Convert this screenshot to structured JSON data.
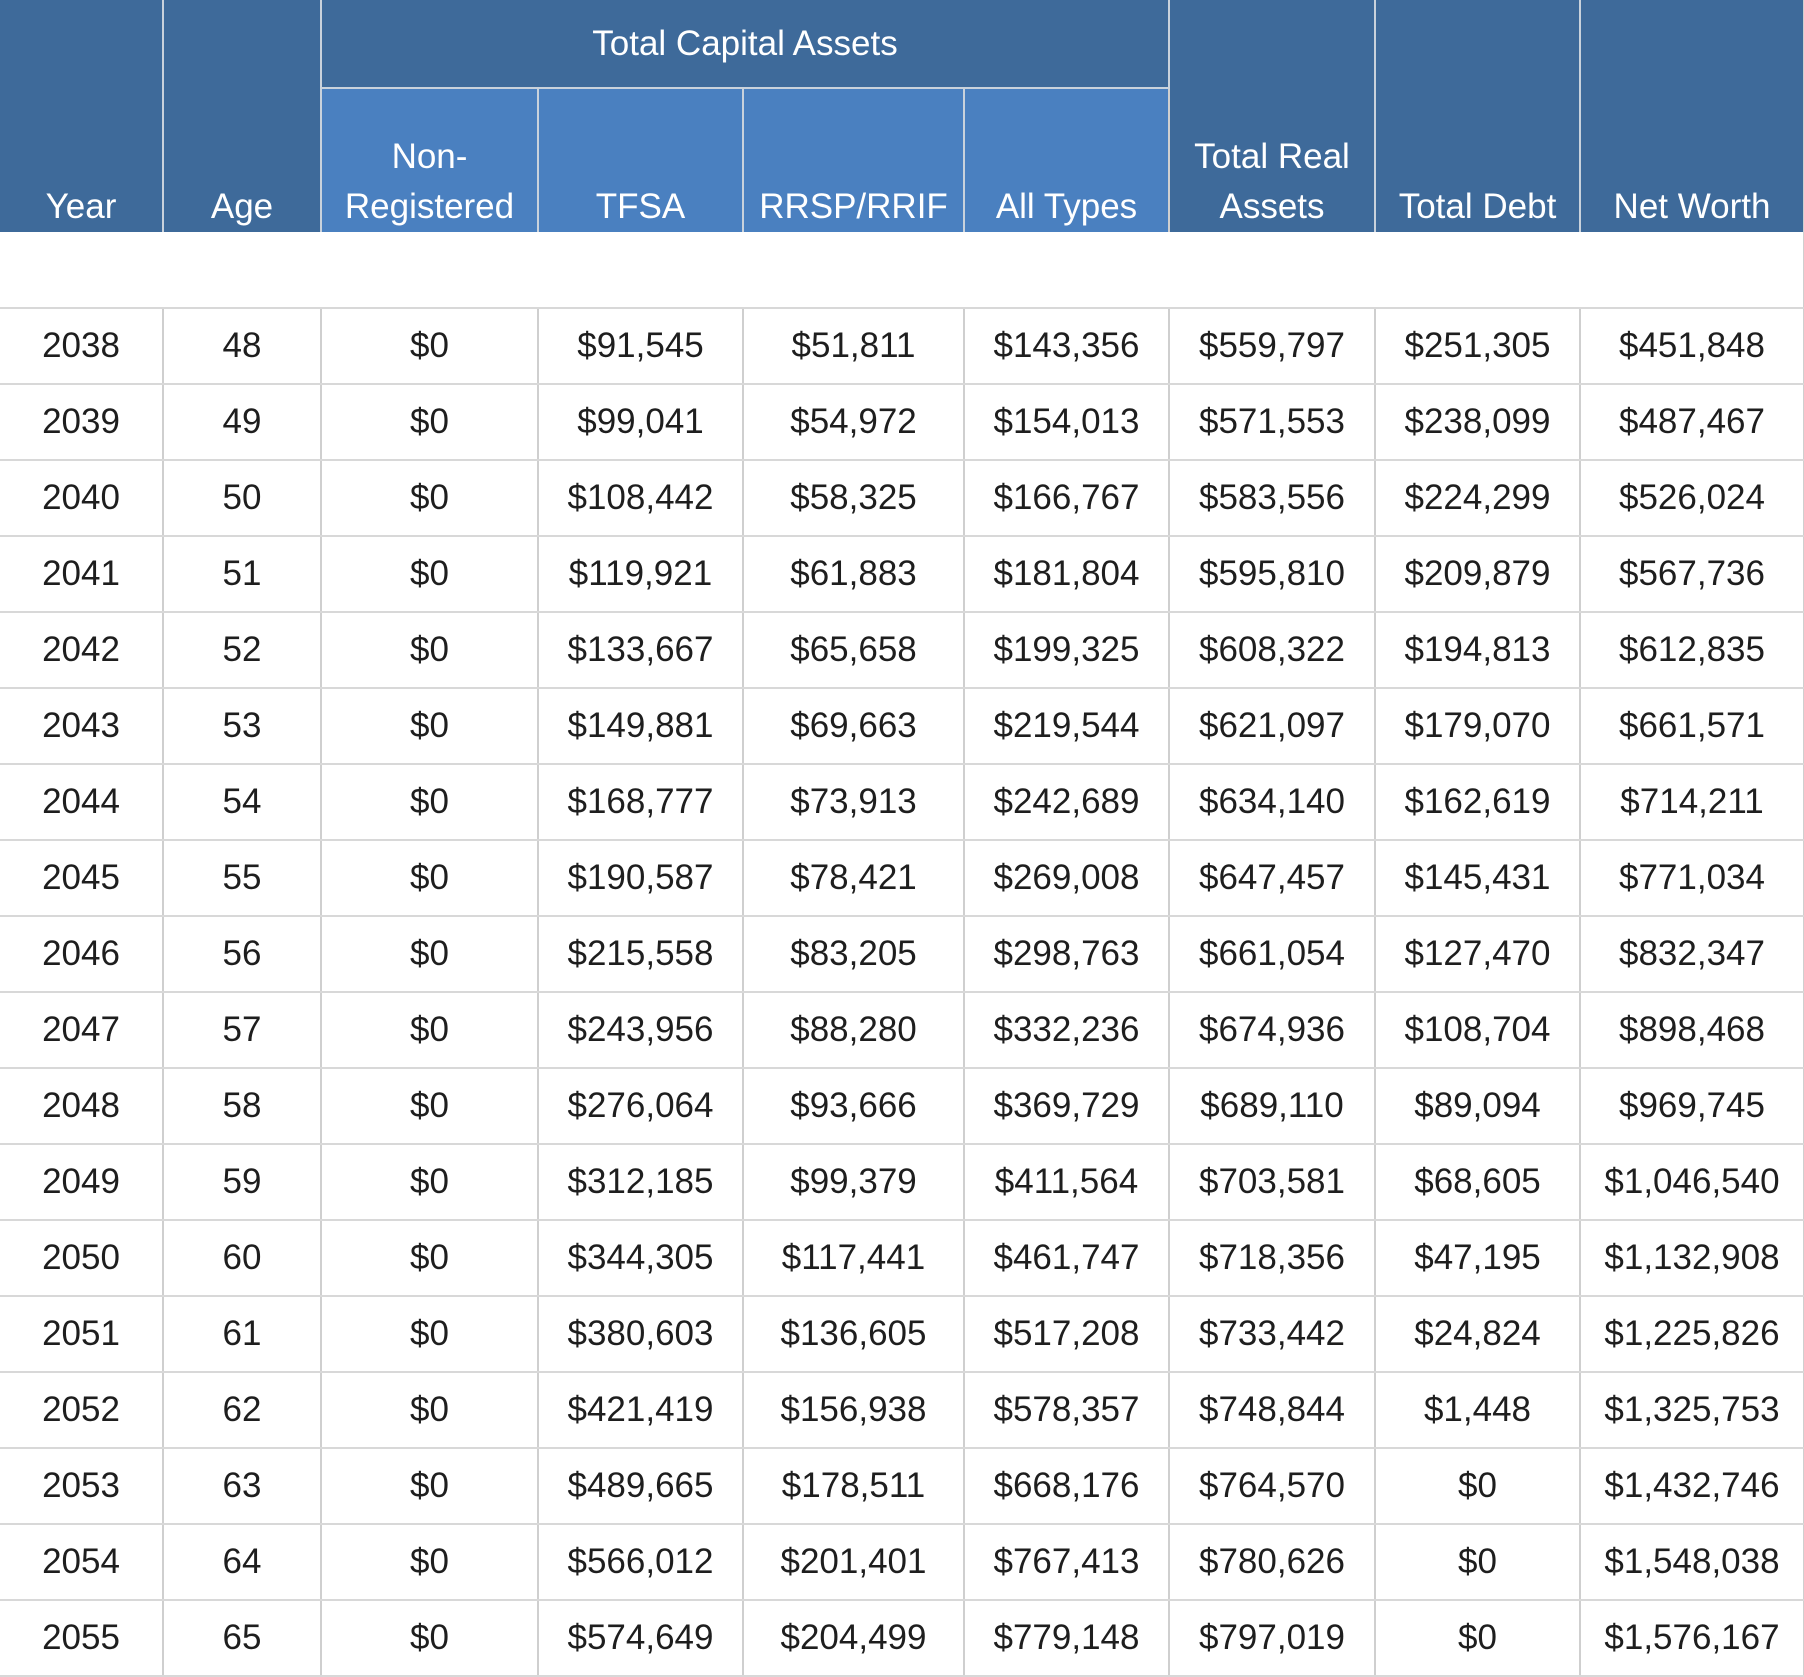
{
  "headers": {
    "year": "Year",
    "age": "Age",
    "total_capital_assets": "Total Capital Assets",
    "non_registered": "Non-\nRegistered",
    "tfsa": "TFSA",
    "rrsp_rrif": "RRSP/RRIF",
    "all_types": "All Types",
    "total_real_assets": "Total Real\nAssets",
    "total_debt": "Total Debt",
    "net_worth": "Net Worth"
  },
  "rows": [
    {
      "year": "2038",
      "age": "48",
      "non_registered": "$0",
      "tfsa": "$91,545",
      "rrsp_rrif": "$51,811",
      "all_types": "$143,356",
      "total_real_assets": "$559,797",
      "total_debt": "$251,305",
      "net_worth": "$451,848"
    },
    {
      "year": "2039",
      "age": "49",
      "non_registered": "$0",
      "tfsa": "$99,041",
      "rrsp_rrif": "$54,972",
      "all_types": "$154,013",
      "total_real_assets": "$571,553",
      "total_debt": "$238,099",
      "net_worth": "$487,467"
    },
    {
      "year": "2040",
      "age": "50",
      "non_registered": "$0",
      "tfsa": "$108,442",
      "rrsp_rrif": "$58,325",
      "all_types": "$166,767",
      "total_real_assets": "$583,556",
      "total_debt": "$224,299",
      "net_worth": "$526,024"
    },
    {
      "year": "2041",
      "age": "51",
      "non_registered": "$0",
      "tfsa": "$119,921",
      "rrsp_rrif": "$61,883",
      "all_types": "$181,804",
      "total_real_assets": "$595,810",
      "total_debt": "$209,879",
      "net_worth": "$567,736"
    },
    {
      "year": "2042",
      "age": "52",
      "non_registered": "$0",
      "tfsa": "$133,667",
      "rrsp_rrif": "$65,658",
      "all_types": "$199,325",
      "total_real_assets": "$608,322",
      "total_debt": "$194,813",
      "net_worth": "$612,835"
    },
    {
      "year": "2043",
      "age": "53",
      "non_registered": "$0",
      "tfsa": "$149,881",
      "rrsp_rrif": "$69,663",
      "all_types": "$219,544",
      "total_real_assets": "$621,097",
      "total_debt": "$179,070",
      "net_worth": "$661,571"
    },
    {
      "year": "2044",
      "age": "54",
      "non_registered": "$0",
      "tfsa": "$168,777",
      "rrsp_rrif": "$73,913",
      "all_types": "$242,689",
      "total_real_assets": "$634,140",
      "total_debt": "$162,619",
      "net_worth": "$714,211"
    },
    {
      "year": "2045",
      "age": "55",
      "non_registered": "$0",
      "tfsa": "$190,587",
      "rrsp_rrif": "$78,421",
      "all_types": "$269,008",
      "total_real_assets": "$647,457",
      "total_debt": "$145,431",
      "net_worth": "$771,034"
    },
    {
      "year": "2046",
      "age": "56",
      "non_registered": "$0",
      "tfsa": "$215,558",
      "rrsp_rrif": "$83,205",
      "all_types": "$298,763",
      "total_real_assets": "$661,054",
      "total_debt": "$127,470",
      "net_worth": "$832,347"
    },
    {
      "year": "2047",
      "age": "57",
      "non_registered": "$0",
      "tfsa": "$243,956",
      "rrsp_rrif": "$88,280",
      "all_types": "$332,236",
      "total_real_assets": "$674,936",
      "total_debt": "$108,704",
      "net_worth": "$898,468"
    },
    {
      "year": "2048",
      "age": "58",
      "non_registered": "$0",
      "tfsa": "$276,064",
      "rrsp_rrif": "$93,666",
      "all_types": "$369,729",
      "total_real_assets": "$689,110",
      "total_debt": "$89,094",
      "net_worth": "$969,745"
    },
    {
      "year": "2049",
      "age": "59",
      "non_registered": "$0",
      "tfsa": "$312,185",
      "rrsp_rrif": "$99,379",
      "all_types": "$411,564",
      "total_real_assets": "$703,581",
      "total_debt": "$68,605",
      "net_worth": "$1,046,540"
    },
    {
      "year": "2050",
      "age": "60",
      "non_registered": "$0",
      "tfsa": "$344,305",
      "rrsp_rrif": "$117,441",
      "all_types": "$461,747",
      "total_real_assets": "$718,356",
      "total_debt": "$47,195",
      "net_worth": "$1,132,908"
    },
    {
      "year": "2051",
      "age": "61",
      "non_registered": "$0",
      "tfsa": "$380,603",
      "rrsp_rrif": "$136,605",
      "all_types": "$517,208",
      "total_real_assets": "$733,442",
      "total_debt": "$24,824",
      "net_worth": "$1,225,826"
    },
    {
      "year": "2052",
      "age": "62",
      "non_registered": "$0",
      "tfsa": "$421,419",
      "rrsp_rrif": "$156,938",
      "all_types": "$578,357",
      "total_real_assets": "$748,844",
      "total_debt": "$1,448",
      "net_worth": "$1,325,753"
    },
    {
      "year": "2053",
      "age": "63",
      "non_registered": "$0",
      "tfsa": "$489,665",
      "rrsp_rrif": "$178,511",
      "all_types": "$668,176",
      "total_real_assets": "$764,570",
      "total_debt": "$0",
      "net_worth": "$1,432,746"
    },
    {
      "year": "2054",
      "age": "64",
      "non_registered": "$0",
      "tfsa": "$566,012",
      "rrsp_rrif": "$201,401",
      "all_types": "$767,413",
      "total_real_assets": "$780,626",
      "total_debt": "$0",
      "net_worth": "$1,548,038"
    },
    {
      "year": "2055",
      "age": "65",
      "non_registered": "$0",
      "tfsa": "$574,649",
      "rrsp_rrif": "$204,499",
      "all_types": "$779,148",
      "total_real_assets": "$797,019",
      "total_debt": "$0",
      "net_worth": "$1,576,167"
    }
  ]
}
